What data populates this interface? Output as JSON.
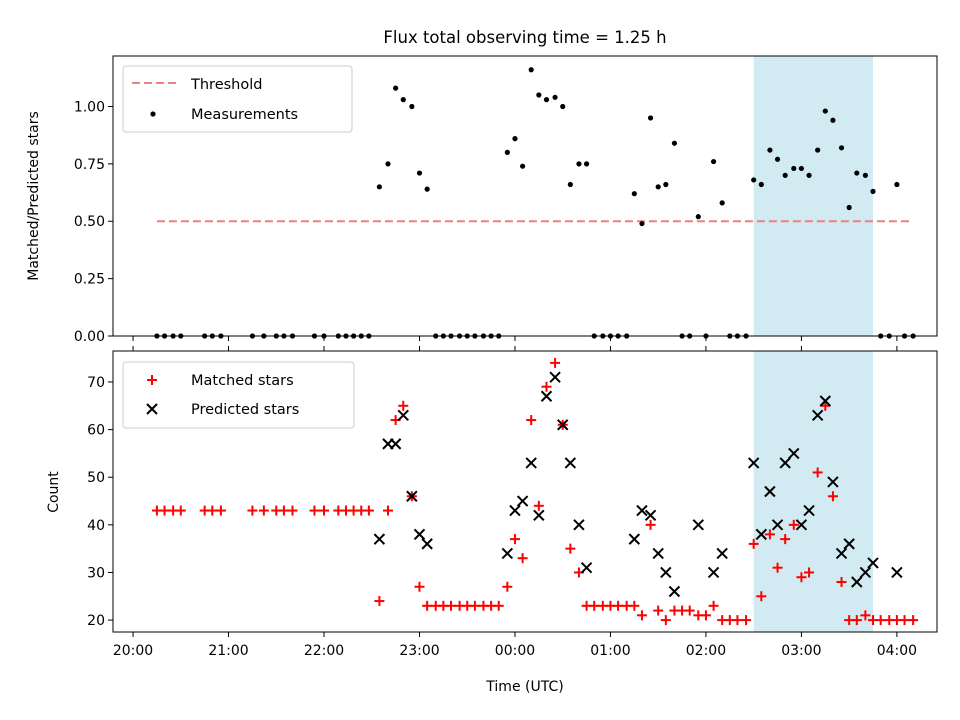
{
  "chart_data": [
    {
      "type": "scatter",
      "title": "Flux total observing time = 1.25 h",
      "ylabel": "Matched/Predicted stars",
      "xlabel": "",
      "ylim": [
        0,
        1.22
      ],
      "yticks": [
        0.0,
        0.25,
        0.5,
        0.75,
        1.0
      ],
      "ytick_labels": [
        "0.00",
        "0.25",
        "0.50",
        "0.75",
        "1.00"
      ],
      "x_unit": "hours since 20:00 UTC",
      "xlim": [
        -0.21,
        8.42
      ],
      "highlight_span": [
        6.5,
        7.75
      ],
      "highlight_color": "#add8e6",
      "grid": false,
      "legend_position": "upper-left",
      "legend": [
        {
          "label": "Threshold",
          "color": "#f08080",
          "style": "dashed"
        },
        {
          "label": "Measurements",
          "color": "#000000",
          "style": "dot"
        }
      ],
      "threshold": {
        "y": 0.5,
        "x_start": 0.25,
        "x_end": 8.15,
        "color": "#f08080"
      },
      "measurements": [
        [
          0.25,
          0
        ],
        [
          0.33,
          0
        ],
        [
          0.42,
          0
        ],
        [
          0.5,
          0
        ],
        [
          0.75,
          0
        ],
        [
          0.83,
          0
        ],
        [
          0.92,
          0
        ],
        [
          1.25,
          0
        ],
        [
          1.37,
          0
        ],
        [
          1.5,
          0
        ],
        [
          1.58,
          0
        ],
        [
          1.67,
          0
        ],
        [
          1.9,
          0
        ],
        [
          2.0,
          0
        ],
        [
          2.15,
          0
        ],
        [
          2.23,
          0
        ],
        [
          2.31,
          0
        ],
        [
          2.39,
          0
        ],
        [
          2.47,
          0
        ],
        [
          2.58,
          0.65
        ],
        [
          2.67,
          0.75
        ],
        [
          2.75,
          1.08
        ],
        [
          2.83,
          1.03
        ],
        [
          2.92,
          1.0
        ],
        [
          3.0,
          0.71
        ],
        [
          3.08,
          0.64
        ],
        [
          3.17,
          0
        ],
        [
          3.25,
          0
        ],
        [
          3.33,
          0
        ],
        [
          3.42,
          0
        ],
        [
          3.5,
          0
        ],
        [
          3.58,
          0
        ],
        [
          3.67,
          0
        ],
        [
          3.75,
          0
        ],
        [
          3.83,
          0
        ],
        [
          3.92,
          0.8
        ],
        [
          4.0,
          0.86
        ],
        [
          4.08,
          0.74
        ],
        [
          4.17,
          1.16
        ],
        [
          4.25,
          1.05
        ],
        [
          4.33,
          1.03
        ],
        [
          4.42,
          1.04
        ],
        [
          4.5,
          1.0
        ],
        [
          4.58,
          0.66
        ],
        [
          4.67,
          0.75
        ],
        [
          4.75,
          0.75
        ],
        [
          4.83,
          0
        ],
        [
          4.92,
          0
        ],
        [
          5.0,
          0
        ],
        [
          5.08,
          0
        ],
        [
          5.17,
          0
        ],
        [
          5.25,
          0.62
        ],
        [
          5.33,
          0.49
        ],
        [
          5.42,
          0.95
        ],
        [
          5.5,
          0.65
        ],
        [
          5.58,
          0.66
        ],
        [
          5.67,
          0.84
        ],
        [
          5.75,
          0
        ],
        [
          5.83,
          0
        ],
        [
          5.92,
          0.52
        ],
        [
          6.0,
          0
        ],
        [
          6.08,
          0.76
        ],
        [
          6.17,
          0.58
        ],
        [
          6.25,
          0
        ],
        [
          6.33,
          0
        ],
        [
          6.42,
          0
        ],
        [
          6.5,
          0.68
        ],
        [
          6.58,
          0.66
        ],
        [
          6.67,
          0.81
        ],
        [
          6.75,
          0.77
        ],
        [
          6.83,
          0.7
        ],
        [
          6.92,
          0.73
        ],
        [
          7.0,
          0.73
        ],
        [
          7.08,
          0.7
        ],
        [
          7.17,
          0.81
        ],
        [
          7.25,
          0.98
        ],
        [
          7.33,
          0.94
        ],
        [
          7.42,
          0.82
        ],
        [
          7.5,
          0.56
        ],
        [
          7.58,
          0.71
        ],
        [
          7.67,
          0.7
        ],
        [
          7.75,
          0.63
        ],
        [
          7.83,
          0
        ],
        [
          7.92,
          0
        ],
        [
          8.0,
          0.66
        ],
        [
          8.08,
          0
        ],
        [
          8.17,
          0
        ]
      ]
    },
    {
      "type": "scatter",
      "title": "",
      "ylabel": "Count",
      "xlabel": "Time (UTC)",
      "ylim": [
        17.5,
        76.5
      ],
      "yticks": [
        20,
        30,
        40,
        50,
        60,
        70
      ],
      "ytick_labels": [
        "20",
        "30",
        "40",
        "50",
        "60",
        "70"
      ],
      "x_unit": "hours since 20:00 UTC",
      "xlim": [
        -0.21,
        8.42
      ],
      "xticks": [
        0,
        1,
        2,
        3,
        4,
        5,
        6,
        7,
        8
      ],
      "xtick_labels": [
        "20:00",
        "21:00",
        "22:00",
        "23:00",
        "00:00",
        "01:00",
        "02:00",
        "03:00",
        "04:00"
      ],
      "highlight_span": [
        6.5,
        7.75
      ],
      "highlight_color": "#add8e6",
      "grid": false,
      "legend_position": "upper-left",
      "series": [
        {
          "name": "Matched stars",
          "color": "#ff0000",
          "marker": "plus",
          "points": [
            [
              0.25,
              43
            ],
            [
              0.33,
              43
            ],
            [
              0.42,
              43
            ],
            [
              0.5,
              43
            ],
            [
              0.75,
              43
            ],
            [
              0.83,
              43
            ],
            [
              0.92,
              43
            ],
            [
              1.25,
              43
            ],
            [
              1.37,
              43
            ],
            [
              1.5,
              43
            ],
            [
              1.58,
              43
            ],
            [
              1.67,
              43
            ],
            [
              1.9,
              43
            ],
            [
              2.0,
              43
            ],
            [
              2.15,
              43
            ],
            [
              2.23,
              43
            ],
            [
              2.31,
              43
            ],
            [
              2.39,
              43
            ],
            [
              2.47,
              43
            ],
            [
              2.58,
              24
            ],
            [
              2.67,
              43
            ],
            [
              2.75,
              62
            ],
            [
              2.83,
              65
            ],
            [
              2.92,
              46
            ],
            [
              3.0,
              27
            ],
            [
              3.08,
              23
            ],
            [
              3.17,
              23
            ],
            [
              3.25,
              23
            ],
            [
              3.33,
              23
            ],
            [
              3.42,
              23
            ],
            [
              3.5,
              23
            ],
            [
              3.58,
              23
            ],
            [
              3.67,
              23
            ],
            [
              3.75,
              23
            ],
            [
              3.83,
              23
            ],
            [
              3.92,
              27
            ],
            [
              4.0,
              37
            ],
            [
              4.08,
              33
            ],
            [
              4.17,
              62
            ],
            [
              4.25,
              44
            ],
            [
              4.33,
              69
            ],
            [
              4.42,
              74
            ],
            [
              4.5,
              61
            ],
            [
              4.58,
              35
            ],
            [
              4.67,
              30
            ],
            [
              4.75,
              23
            ],
            [
              4.83,
              23
            ],
            [
              4.92,
              23
            ],
            [
              5.0,
              23
            ],
            [
              5.08,
              23
            ],
            [
              5.17,
              23
            ],
            [
              5.25,
              23
            ],
            [
              5.33,
              21
            ],
            [
              5.42,
              40
            ],
            [
              5.5,
              22
            ],
            [
              5.58,
              20
            ],
            [
              5.67,
              22
            ],
            [
              5.75,
              22
            ],
            [
              5.83,
              22
            ],
            [
              5.92,
              21
            ],
            [
              6.0,
              21
            ],
            [
              6.08,
              23
            ],
            [
              6.17,
              20
            ],
            [
              6.25,
              20
            ],
            [
              6.33,
              20
            ],
            [
              6.42,
              20
            ],
            [
              6.5,
              36
            ],
            [
              6.58,
              25
            ],
            [
              6.67,
              38
            ],
            [
              6.75,
              31
            ],
            [
              6.83,
              37
            ],
            [
              6.92,
              40
            ],
            [
              7.0,
              29
            ],
            [
              7.08,
              30
            ],
            [
              7.17,
              51
            ],
            [
              7.25,
              65
            ],
            [
              7.33,
              46
            ],
            [
              7.42,
              28
            ],
            [
              7.5,
              20
            ],
            [
              7.58,
              20
            ],
            [
              7.67,
              21
            ],
            [
              7.75,
              20
            ],
            [
              7.83,
              20
            ],
            [
              7.92,
              20
            ],
            [
              8.0,
              20
            ],
            [
              8.08,
              20
            ],
            [
              8.17,
              20
            ]
          ]
        },
        {
          "name": "Predicted stars",
          "color": "#000000",
          "marker": "x",
          "points": [
            [
              2.58,
              37
            ],
            [
              2.67,
              57
            ],
            [
              2.75,
              57
            ],
            [
              2.83,
              63
            ],
            [
              2.92,
              46
            ],
            [
              3.0,
              38
            ],
            [
              3.08,
              36
            ],
            [
              3.92,
              34
            ],
            [
              4.0,
              43
            ],
            [
              4.08,
              45
            ],
            [
              4.17,
              53
            ],
            [
              4.25,
              42
            ],
            [
              4.33,
              67
            ],
            [
              4.42,
              71
            ],
            [
              4.5,
              61
            ],
            [
              4.58,
              53
            ],
            [
              4.67,
              40
            ],
            [
              4.75,
              31
            ],
            [
              5.25,
              37
            ],
            [
              5.33,
              43
            ],
            [
              5.42,
              42
            ],
            [
              5.5,
              34
            ],
            [
              5.58,
              30
            ],
            [
              5.67,
              26
            ],
            [
              5.92,
              40
            ],
            [
              6.08,
              30
            ],
            [
              6.17,
              34
            ],
            [
              6.5,
              53
            ],
            [
              6.58,
              38
            ],
            [
              6.67,
              47
            ],
            [
              6.75,
              40
            ],
            [
              6.83,
              53
            ],
            [
              6.92,
              55
            ],
            [
              7.0,
              40
            ],
            [
              7.08,
              43
            ],
            [
              7.17,
              63
            ],
            [
              7.25,
              66
            ],
            [
              7.33,
              49
            ],
            [
              7.42,
              34
            ],
            [
              7.5,
              36
            ],
            [
              7.58,
              28
            ],
            [
              7.67,
              30
            ],
            [
              7.75,
              32
            ],
            [
              8.0,
              30
            ]
          ]
        }
      ]
    }
  ]
}
